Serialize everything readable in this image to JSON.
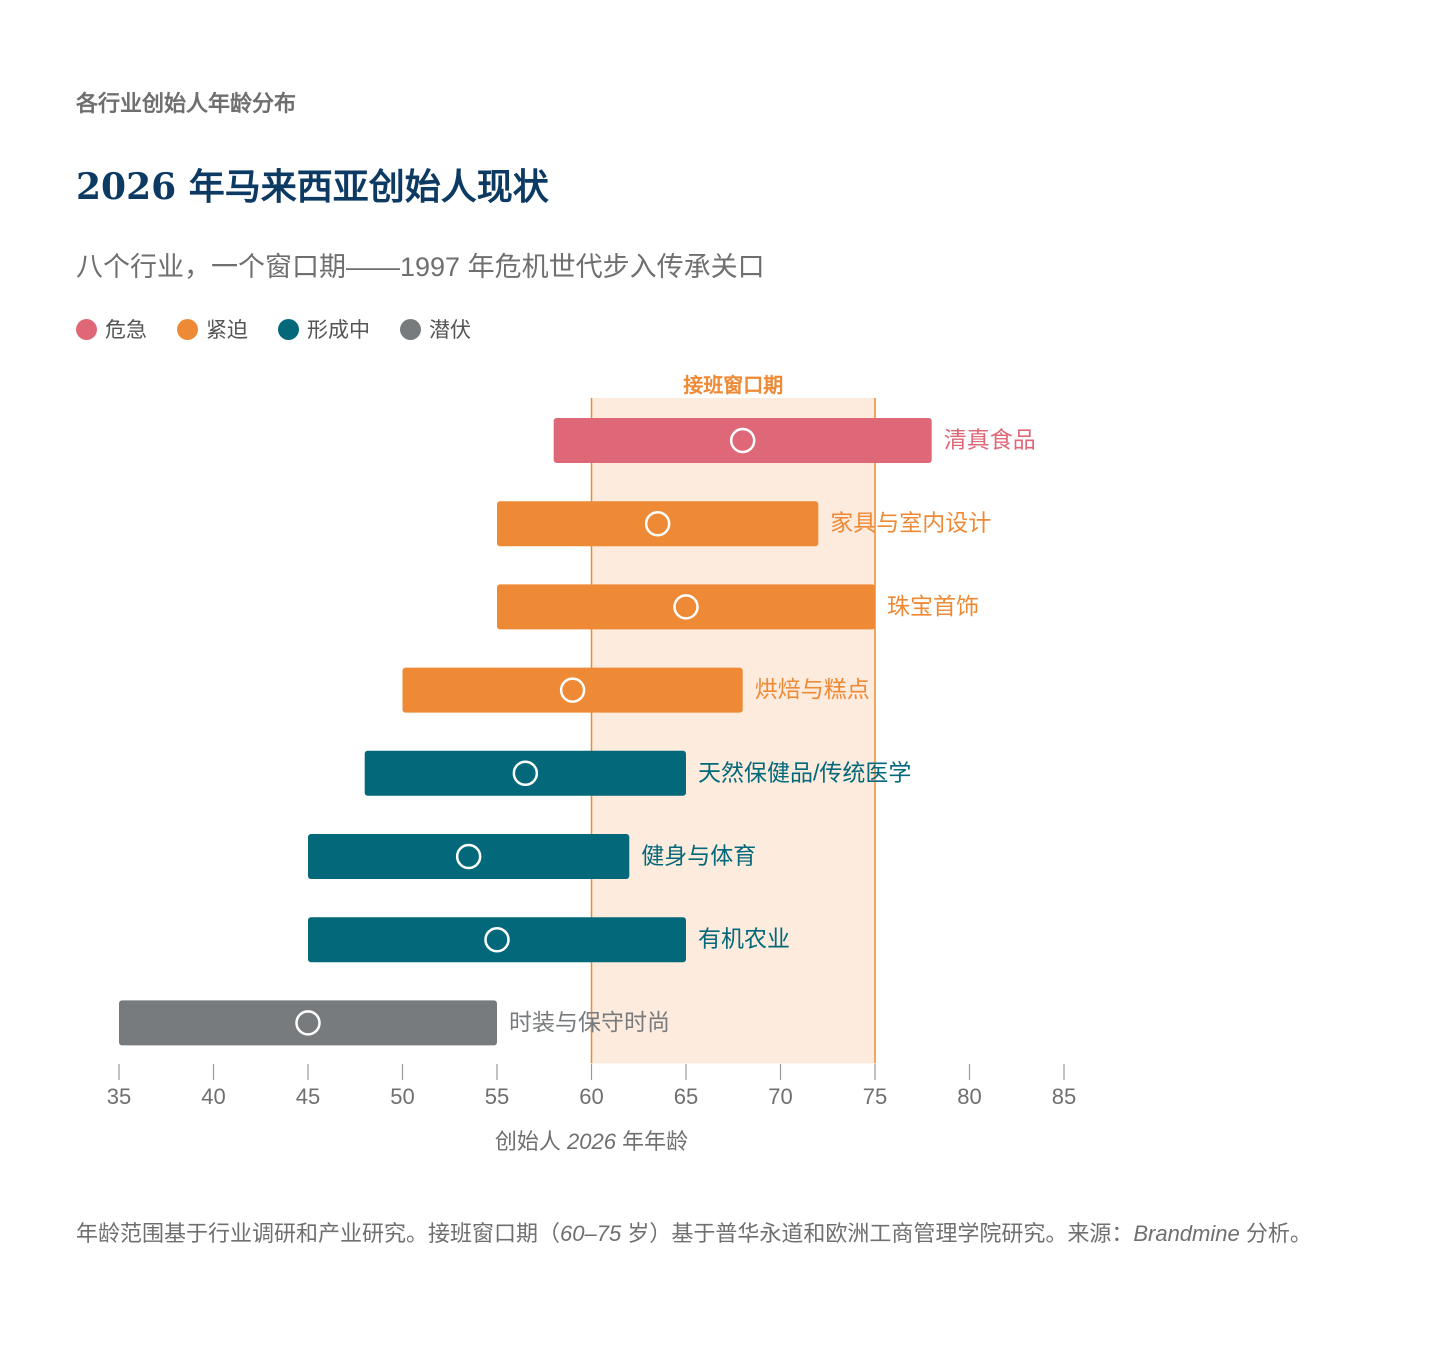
{
  "header": {
    "kicker": "各行业创始人年龄分布",
    "title": "2026 年马来西亚创始人现状",
    "subtitle": "八个行业，一个窗口期——1997 年危机世代步入传承关口"
  },
  "legend": [
    {
      "label": "危急",
      "color": "#df6878"
    },
    {
      "label": "紧迫",
      "color": "#ee8a35"
    },
    {
      "label": "形成中",
      "color": "#02687a"
    },
    {
      "label": "潜伏",
      "color": "#787b7d"
    }
  ],
  "chart_data": {
    "type": "range-bar",
    "x_range": [
      35,
      85
    ],
    "x_ticks": [
      35,
      40,
      45,
      50,
      55,
      60,
      65,
      70,
      75,
      80,
      85
    ],
    "xlabel_parts": {
      "pre": "创始人 ",
      "italic": "2026",
      "post": " 年年龄"
    },
    "window": {
      "label": "接班窗口期",
      "start": 60,
      "end": 75,
      "color": "#ee8a35",
      "fill": "#fdebdd"
    },
    "industries": [
      {
        "name": "清真食品",
        "min": 58,
        "max": 78,
        "median": 68,
        "level": "危急",
        "color": "#df6878"
      },
      {
        "name": "家具与室内设计",
        "min": 55,
        "max": 72,
        "median": 63.5,
        "level": "紧迫",
        "color": "#ee8a35"
      },
      {
        "name": "珠宝首饰",
        "min": 55,
        "max": 75,
        "median": 65,
        "level": "紧迫",
        "color": "#ee8a35"
      },
      {
        "name": "烘焙与糕点",
        "min": 50,
        "max": 68,
        "median": 59,
        "level": "紧迫",
        "color": "#ee8a35"
      },
      {
        "name": "天然保健品/传统医学",
        "min": 48,
        "max": 65,
        "median": 56.5,
        "level": "形成中",
        "color": "#02687a"
      },
      {
        "name": "健身与体育",
        "min": 45,
        "max": 62,
        "median": 53.5,
        "level": "形成中",
        "color": "#02687a"
      },
      {
        "name": "有机农业",
        "min": 45,
        "max": 65,
        "median": 55,
        "level": "形成中",
        "color": "#02687a"
      },
      {
        "name": "时装与保守时尚",
        "min": 35,
        "max": 55,
        "median": 45,
        "level": "潜伏",
        "color": "#787b7d"
      }
    ]
  },
  "footnote": {
    "part1": "年龄范围基于行业调研和产业研究。接班窗口期（",
    "range_italic": "60–75",
    "part2": " 岁）基于普华永道和欧洲工商管理学院研究。来源：",
    "source_italic": "Brandmine",
    "part3": " 分析。"
  }
}
